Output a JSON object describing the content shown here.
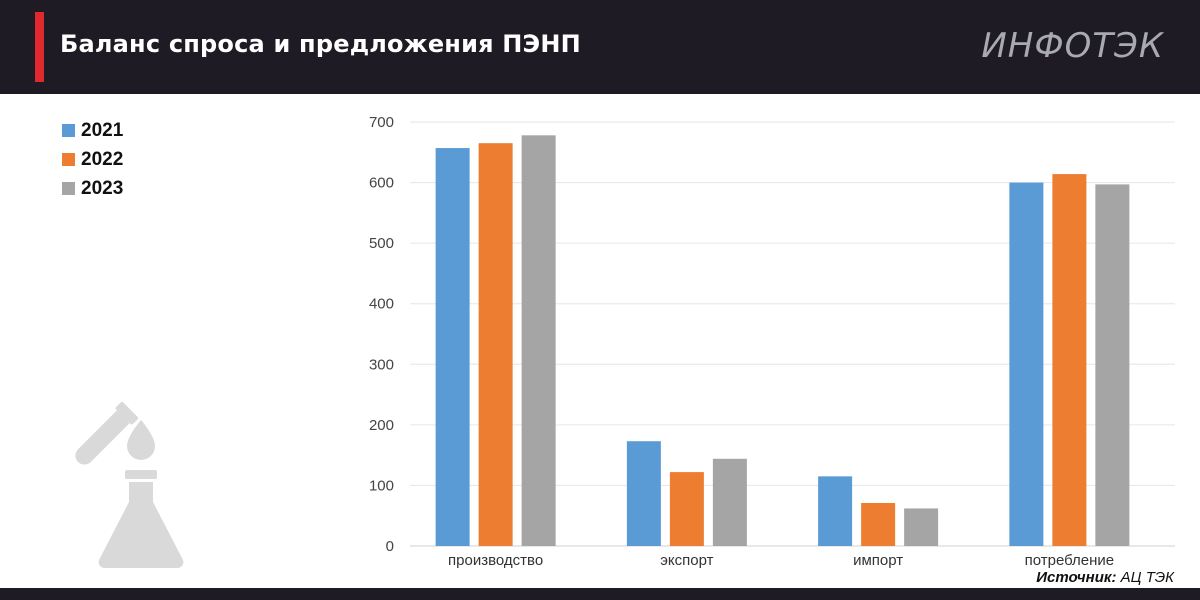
{
  "header": {
    "title": "Баланс спроса и предложения ПЭНП",
    "logo": "ИНФОТЭК"
  },
  "colors": {
    "header_bg": "#1e1b24",
    "accent": "#e0282f",
    "series": [
      "#5b9bd5",
      "#ed7d31",
      "#a5a5a5"
    ]
  },
  "chart_data": {
    "type": "bar",
    "categories": [
      "производство",
      "экспорт",
      "импорт",
      "потребление"
    ],
    "series": [
      {
        "name": "2021",
        "values": [
          657,
          173,
          115,
          600
        ]
      },
      {
        "name": "2022",
        "values": [
          665,
          122,
          71,
          614
        ]
      },
      {
        "name": "2023",
        "values": [
          678,
          144,
          62,
          597
        ]
      }
    ],
    "ylim": [
      0,
      700
    ],
    "yticks": [
      0,
      100,
      200,
      300,
      400,
      500,
      600,
      700
    ],
    "grid": true,
    "legend": "top-left"
  },
  "source": {
    "label": "Источник:",
    "value": "АЦ ТЭК"
  },
  "icons": [
    "test-tube-icon",
    "flask-icon"
  ]
}
